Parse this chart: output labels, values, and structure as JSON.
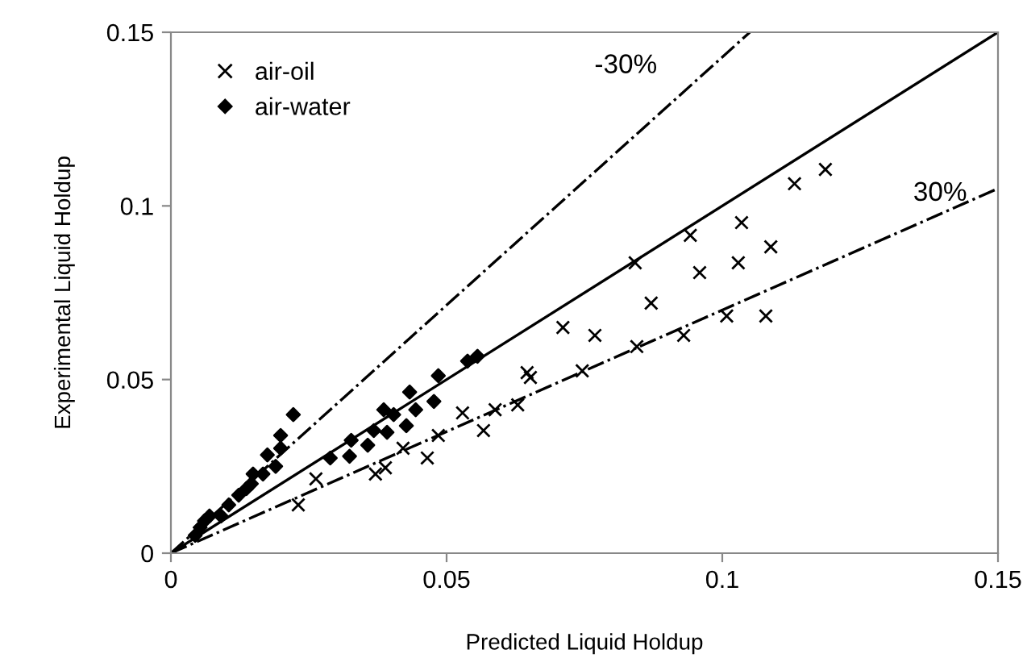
{
  "chart_data": {
    "type": "scatter",
    "xlabel": "Predicted Liquid Holdup",
    "ylabel": "Experimental Liquid Holdup",
    "xlim": [
      0,
      0.15
    ],
    "ylim": [
      0,
      0.15
    ],
    "xticks": [
      0,
      0.05,
      0.1,
      0.15
    ],
    "yticks": [
      0,
      0.05,
      0.1,
      0.15
    ],
    "grid": false,
    "legend": "top left",
    "series": [
      {
        "name": "air-oil",
        "marker": "cross",
        "color": "#000000",
        "x": [
          0.0231,
          0.0263,
          0.0371,
          0.0389,
          0.0421,
          0.0465,
          0.0485,
          0.0567,
          0.0529,
          0.0588,
          0.0629,
          0.0646,
          0.0652,
          0.0746,
          0.0711,
          0.0769,
          0.0845,
          0.0871,
          0.0842,
          0.093,
          0.0959,
          0.0942,
          0.1008,
          0.1029,
          0.1035,
          0.1079,
          0.1088,
          0.1131,
          0.1187
        ],
        "values": [
          0.0139,
          0.0214,
          0.0228,
          0.0246,
          0.0302,
          0.0274,
          0.0339,
          0.0353,
          0.0404,
          0.0413,
          0.0427,
          0.052,
          0.0506,
          0.0525,
          0.065,
          0.0627,
          0.0595,
          0.072,
          0.0836,
          0.0627,
          0.0808,
          0.0915,
          0.0683,
          0.0836,
          0.0952,
          0.0683,
          0.0882,
          0.1064,
          0.1105
        ]
      },
      {
        "name": "air-water",
        "marker": "diamond",
        "color": "#000000",
        "x": [
          0.0222,
          0.0199,
          0.0199,
          0.0175,
          0.019,
          0.0167,
          0.0149,
          0.0146,
          0.0137,
          0.0123,
          0.0105,
          0.0091,
          0.007,
          0.0061,
          0.0053,
          0.0044,
          0.0289,
          0.0324,
          0.0327,
          0.0357,
          0.0368,
          0.0392,
          0.0386,
          0.0404,
          0.0427,
          0.0444,
          0.0433,
          0.0477,
          0.0485,
          0.0538,
          0.0556
        ],
        "values": [
          0.0399,
          0.0339,
          0.0302,
          0.0283,
          0.025,
          0.0228,
          0.0228,
          0.02,
          0.0186,
          0.0167,
          0.0139,
          0.0107,
          0.0107,
          0.0093,
          0.0074,
          0.0051,
          0.0274,
          0.0279,
          0.0325,
          0.0311,
          0.0353,
          0.0348,
          0.0413,
          0.0399,
          0.0367,
          0.0413,
          0.0464,
          0.0437,
          0.0511,
          0.0553,
          0.0567
        ]
      },
      {
        "type": "line",
        "line_style": "solid",
        "color": "#000000",
        "x": [
          0,
          0.15
        ],
        "values": [
          0,
          0.15
        ]
      },
      {
        "type": "line",
        "line_style": "dashdot",
        "color": "#000000",
        "x": [
          0,
          0.105
        ],
        "values": [
          0,
          0.15
        ]
      },
      {
        "type": "line",
        "line_style": "dashdot",
        "color": "#000000",
        "x": [
          0,
          0.15
        ],
        "values": [
          0,
          0.105
        ]
      }
    ],
    "annotations": [
      "-30%",
      "30%"
    ]
  }
}
